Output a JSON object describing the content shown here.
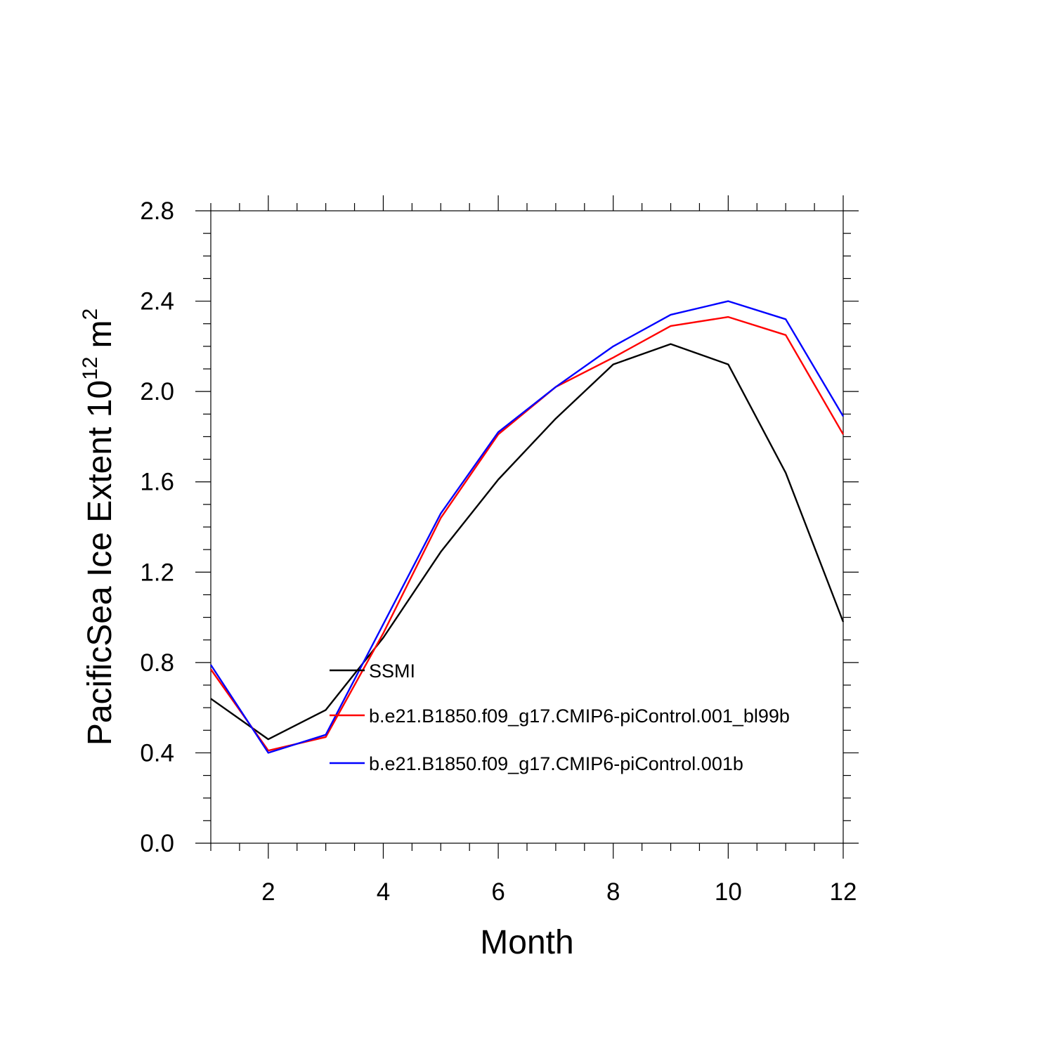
{
  "chart_data": {
    "type": "line",
    "title": "",
    "xlabel": "Month",
    "ylabel": "PacificSea Ice Extent 10",
    "ylabel_exponent": "12",
    "ylabel_unit": "m",
    "ylabel_unit_exponent": "2",
    "xlim": [
      1,
      12
    ],
    "ylim": [
      0.0,
      2.8
    ],
    "x_ticks": [
      2,
      4,
      6,
      8,
      10,
      12
    ],
    "y_ticks": [
      "0.0",
      "0.4",
      "0.8",
      "1.2",
      "1.6",
      "2.0",
      "2.4",
      "2.8"
    ],
    "grid": false,
    "legend_position": "center-left inside plot",
    "x": [
      1,
      2,
      3,
      4,
      5,
      6,
      7,
      8,
      9,
      10,
      11,
      12
    ],
    "series": [
      {
        "name": "SSMI",
        "color": "#000000",
        "values": [
          0.64,
          0.46,
          0.59,
          0.91,
          1.29,
          1.61,
          1.88,
          2.12,
          2.21,
          2.12,
          1.64,
          0.98
        ]
      },
      {
        "name": "b.e21.B1850.f09_g17.CMIP6-piControl.001_bl99b",
        "color": "#ff0000",
        "values": [
          0.77,
          0.41,
          0.47,
          0.93,
          1.44,
          1.81,
          2.02,
          2.15,
          2.29,
          2.33,
          2.25,
          1.81
        ]
      },
      {
        "name": "b.e21.B1850.f09_g17.CMIP6-piControl.001b",
        "color": "#0000ff",
        "values": [
          0.79,
          0.4,
          0.48,
          0.97,
          1.46,
          1.82,
          2.02,
          2.2,
          2.34,
          2.4,
          2.32,
          1.89
        ]
      }
    ]
  }
}
